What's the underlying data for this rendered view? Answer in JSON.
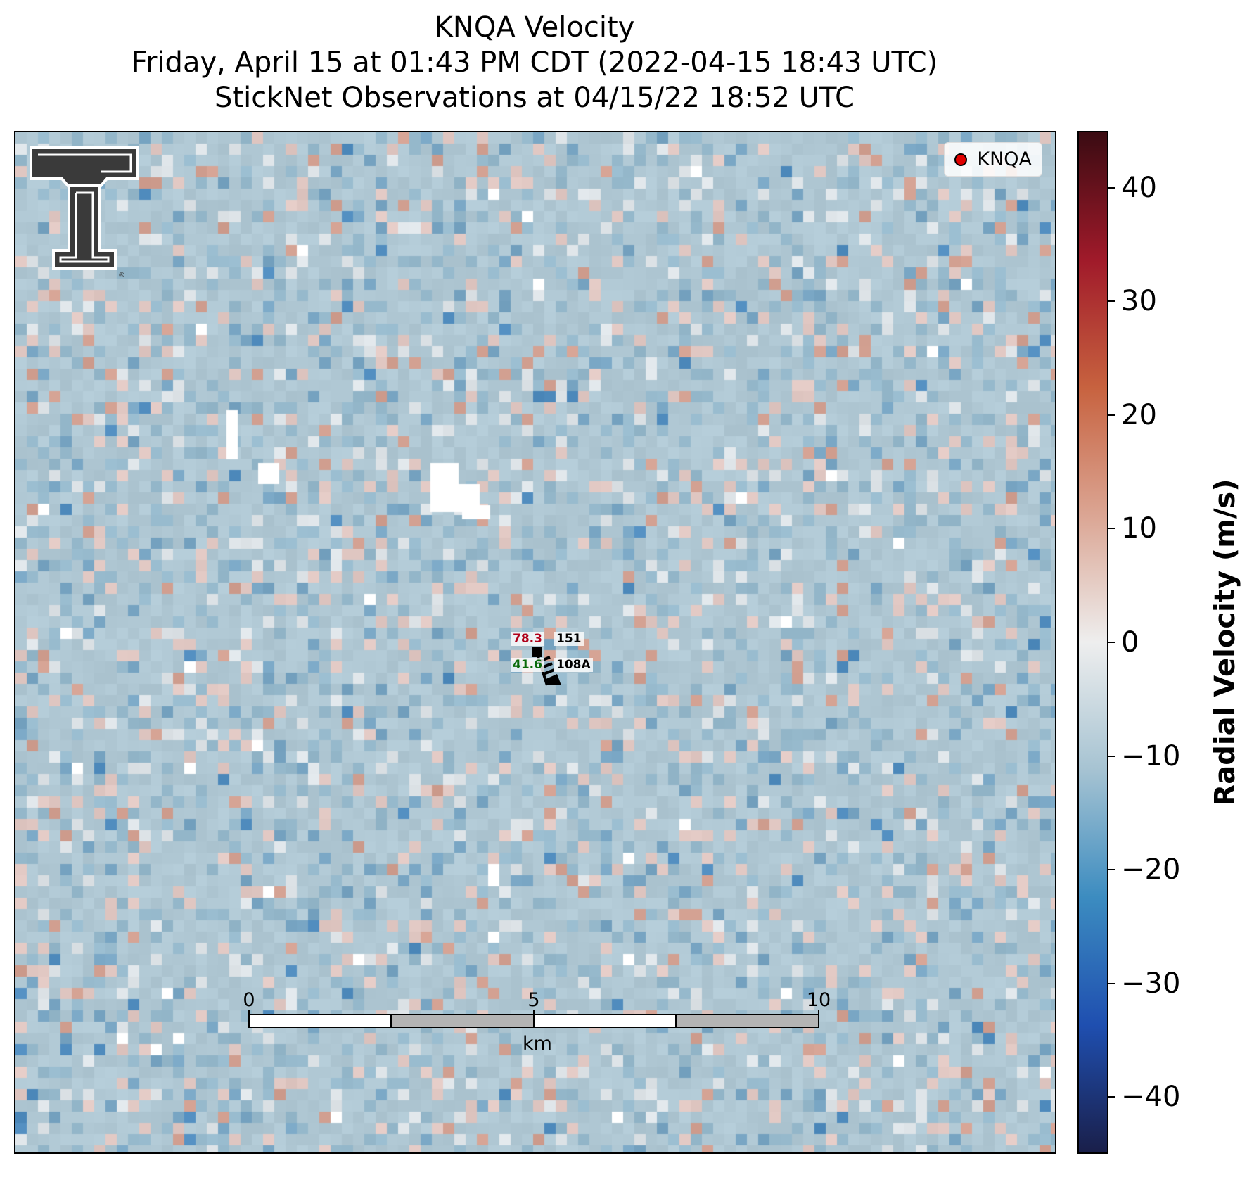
{
  "title": {
    "line1": "KNQA Velocity",
    "line2": "Friday, April 15 at 01:43 PM CDT (2022-04-15 18:43 UTC)",
    "line3": "StickNet Observations at 04/15/22 18:52 UTC"
  },
  "legend": {
    "label": "KNQA",
    "marker_color": "#e00000"
  },
  "logo": {
    "name": "texas-tech-double-t-logo",
    "registered_mark": "®"
  },
  "station": {
    "temperature": "78.3",
    "dewpoint": "41.6",
    "id_top": "151",
    "id_bottom": "108A",
    "temperature_color": "#b0001a",
    "dewpoint_color": "#0a6a0a"
  },
  "scalebar": {
    "ticks": [
      "0",
      "5",
      "10"
    ],
    "unit": "km",
    "tick_values_km": [
      0,
      5,
      10
    ]
  },
  "colorbar": {
    "label": "Radial Velocity (m/s)",
    "vmin": -45,
    "vmax": 45,
    "ticks": [
      40,
      30,
      20,
      10,
      0,
      -10,
      -20,
      -30,
      -40
    ],
    "tick_labels": [
      "40",
      "30",
      "20",
      "10",
      "0",
      "−10",
      "−20",
      "−30",
      "−40"
    ],
    "colormap_stops": [
      "#1a1f4a",
      "#1f4fb0",
      "#3c8cc0",
      "#a6c3d2",
      "#eeeeee",
      "#dba593",
      "#c7623f",
      "#a01a2a",
      "#3a0b12"
    ]
  }
}
